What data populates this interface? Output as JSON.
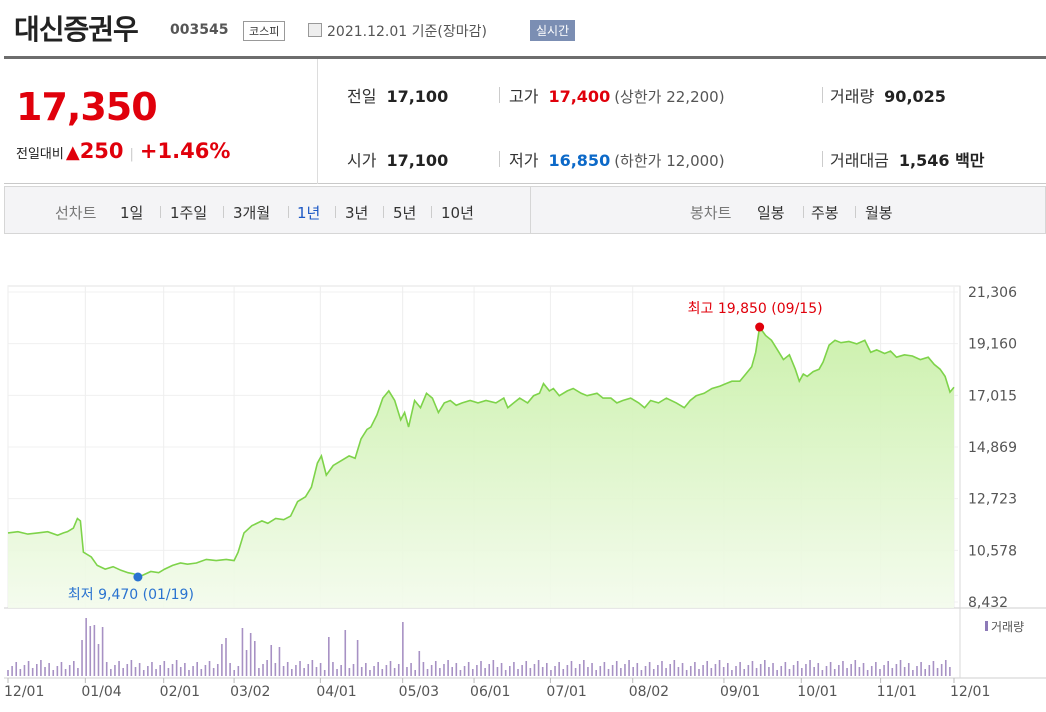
{
  "header": {
    "stock_name": "대신증권우",
    "stock_code": "003545",
    "market": "코스피",
    "as_of": "2021.12.01 기준(장마감)",
    "realtime_badge": "실시간"
  },
  "quote": {
    "price": "17,350",
    "change_label": "전일대비",
    "change_arrow": "▲",
    "change_amount": "250",
    "change_percent": "+1.46%",
    "prev_close_label": "전일",
    "prev_close": "17,100",
    "high_label": "고가",
    "high": "17,400",
    "upper_limit": "(상한가 22,200)",
    "volume_label": "거래량",
    "volume": "90,025",
    "open_label": "시가",
    "open": "17,100",
    "low_label": "저가",
    "low": "16,850",
    "lower_limit": "(하한가 12,000)",
    "trade_value_label": "거래대금",
    "trade_value": "1,546 백만"
  },
  "tabs": {
    "line_label": "선차트",
    "line_items": [
      "1일",
      "1주일",
      "3개월",
      "1년",
      "3년",
      "5년",
      "10년"
    ],
    "line_active": "1년",
    "candle_label": "봉차트",
    "candle_items": [
      "일봉",
      "주봉",
      "월봉"
    ]
  },
  "colors": {
    "up": "#e0000b",
    "down": "#0c69c8",
    "line": "#7ed34a",
    "fill": "#e6f8d6",
    "volume": "#a791c4"
  },
  "chart_data": {
    "type": "area",
    "x_ticks": [
      "12/01",
      "01/04",
      "02/01",
      "03/02",
      "04/01",
      "05/03",
      "06/01",
      "07/01",
      "08/02",
      "09/01",
      "10/01",
      "11/01",
      "12/01"
    ],
    "y_ticks": [
      "21,306",
      "19,160",
      "17,015",
      "14,869",
      "12,723",
      "10,578",
      "8,432"
    ],
    "ylim": [
      8432,
      21306
    ],
    "max_label": "최고 19,850 (09/15)",
    "min_label": "최저 9,470 (01/19)",
    "volume_legend": "거래량",
    "series": [
      {
        "values": [
          [
            0,
            11300
          ],
          [
            10,
            11350
          ],
          [
            20,
            11250
          ],
          [
            30,
            11300
          ],
          [
            40,
            11350
          ],
          [
            50,
            11200
          ],
          [
            56,
            11300
          ],
          [
            60,
            11350
          ],
          [
            66,
            11500
          ],
          [
            70,
            11900
          ],
          [
            73,
            11800
          ],
          [
            76,
            10500
          ],
          [
            84,
            10300
          ],
          [
            90,
            9950
          ],
          [
            98,
            9800
          ],
          [
            106,
            9900
          ],
          [
            114,
            9750
          ],
          [
            121,
            9650
          ],
          [
            127,
            9600
          ],
          [
            131,
            9470
          ],
          [
            136,
            9550
          ],
          [
            144,
            9700
          ],
          [
            152,
            9650
          ],
          [
            158,
            9800
          ],
          [
            166,
            9950
          ],
          [
            174,
            10050
          ],
          [
            181,
            10000
          ],
          [
            190,
            10050
          ],
          [
            200,
            10200
          ],
          [
            210,
            10150
          ],
          [
            220,
            10200
          ],
          [
            228,
            10150
          ],
          [
            232,
            10500
          ],
          [
            238,
            11300
          ],
          [
            246,
            11600
          ],
          [
            256,
            11800
          ],
          [
            262,
            11700
          ],
          [
            270,
            11900
          ],
          [
            278,
            11850
          ],
          [
            285,
            12000
          ],
          [
            292,
            12600
          ],
          [
            300,
            12800
          ],
          [
            306,
            13200
          ],
          [
            312,
            14200
          ],
          [
            316,
            14500
          ],
          [
            321,
            13700
          ],
          [
            328,
            14100
          ],
          [
            336,
            14300
          ],
          [
            344,
            14500
          ],
          [
            350,
            14400
          ],
          [
            356,
            15200
          ],
          [
            362,
            15600
          ],
          [
            366,
            15700
          ],
          [
            372,
            16200
          ],
          [
            378,
            16900
          ],
          [
            384,
            17200
          ],
          [
            390,
            16800
          ],
          [
            396,
            16000
          ],
          [
            400,
            16300
          ],
          [
            404,
            15700
          ],
          [
            410,
            16800
          ],
          [
            416,
            16500
          ],
          [
            422,
            17100
          ],
          [
            428,
            16900
          ],
          [
            434,
            16300
          ],
          [
            440,
            16700
          ],
          [
            446,
            16800
          ],
          [
            452,
            16600
          ],
          [
            458,
            16700
          ],
          [
            466,
            16800
          ],
          [
            474,
            16700
          ],
          [
            482,
            16800
          ],
          [
            492,
            16700
          ],
          [
            500,
            16900
          ],
          [
            504,
            16500
          ],
          [
            510,
            16700
          ],
          [
            516,
            16900
          ],
          [
            524,
            16700
          ],
          [
            530,
            17000
          ],
          [
            536,
            17100
          ],
          [
            540,
            17500
          ],
          [
            546,
            17200
          ],
          [
            550,
            17300
          ],
          [
            556,
            17000
          ],
          [
            564,
            17200
          ],
          [
            570,
            17300
          ],
          [
            578,
            17100
          ],
          [
            584,
            17000
          ],
          [
            594,
            17100
          ],
          [
            600,
            16900
          ],
          [
            608,
            16900
          ],
          [
            614,
            16700
          ],
          [
            620,
            16800
          ],
          [
            628,
            16900
          ],
          [
            636,
            16700
          ],
          [
            642,
            16500
          ],
          [
            648,
            16800
          ],
          [
            656,
            16700
          ],
          [
            664,
            16900
          ],
          [
            674,
            16700
          ],
          [
            682,
            16500
          ],
          [
            688,
            16800
          ],
          [
            694,
            17000
          ],
          [
            702,
            17100
          ],
          [
            710,
            17300
          ],
          [
            718,
            17400
          ],
          [
            724,
            17500
          ],
          [
            730,
            17600
          ],
          [
            738,
            17600
          ],
          [
            744,
            17900
          ],
          [
            750,
            18200
          ],
          [
            754,
            18800
          ],
          [
            758,
            19850
          ],
          [
            764,
            19500
          ],
          [
            770,
            19300
          ],
          [
            776,
            18900
          ],
          [
            782,
            18500
          ],
          [
            788,
            18700
          ],
          [
            794,
            18100
          ],
          [
            798,
            17600
          ],
          [
            802,
            17900
          ],
          [
            806,
            17800
          ],
          [
            812,
            18000
          ],
          [
            818,
            18100
          ],
          [
            822,
            18400
          ],
          [
            828,
            19100
          ],
          [
            834,
            19300
          ],
          [
            840,
            19200
          ],
          [
            848,
            19250
          ],
          [
            856,
            19150
          ],
          [
            864,
            19300
          ],
          [
            870,
            18800
          ],
          [
            876,
            18900
          ],
          [
            884,
            18750
          ],
          [
            890,
            18850
          ],
          [
            896,
            18600
          ],
          [
            904,
            18700
          ],
          [
            912,
            18650
          ],
          [
            920,
            18500
          ],
          [
            928,
            18600
          ],
          [
            934,
            18300
          ],
          [
            940,
            18100
          ],
          [
            945,
            17800
          ],
          [
            950,
            17150
          ],
          [
            954,
            17350
          ]
        ]
      }
    ]
  }
}
